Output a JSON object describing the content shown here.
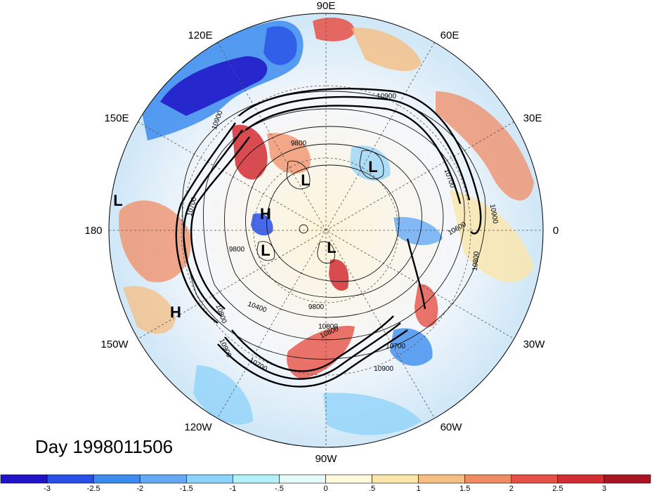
{
  "date_label": "Day 1998011506",
  "longitude_labels": {
    "n": "90E",
    "ne": "60E",
    "ene": "30E",
    "e": "0",
    "ese": "30W",
    "se": "60W",
    "s": "90W",
    "sw": "120W",
    "wsw": "150W",
    "w": "180",
    "wnw": "150E",
    "nw": "120E"
  },
  "pressure_centers": [
    {
      "type": "L",
      "name": "low-center-dateline"
    },
    {
      "type": "L",
      "name": "low-center-siberia"
    },
    {
      "type": "L",
      "name": "low-center-europe"
    },
    {
      "type": "H",
      "name": "high-center-alaska"
    },
    {
      "type": "L",
      "name": "low-center-beaufort"
    },
    {
      "type": "L",
      "name": "low-center-baffin"
    },
    {
      "type": "H",
      "name": "high-center-pacific"
    }
  ],
  "contour_labels": [
    {
      "text": "10900",
      "name": "contour-label-10900-a"
    },
    {
      "text": "10900",
      "name": "contour-label-10900-b"
    },
    {
      "text": "9800",
      "name": "contour-label-9800-a"
    },
    {
      "text": "10700",
      "name": "contour-label-10700-a"
    },
    {
      "text": "10600",
      "name": "contour-label-10600"
    },
    {
      "text": "10900",
      "name": "contour-label-10900-c"
    },
    {
      "text": "10800",
      "name": "contour-label-10800-a"
    },
    {
      "text": "10700",
      "name": "contour-label-10700-b"
    },
    {
      "text": "9800",
      "name": "contour-label-9800-b"
    },
    {
      "text": "10400",
      "name": "contour-label-10400"
    },
    {
      "text": "9800",
      "name": "contour-label-9800-c"
    },
    {
      "text": "10800",
      "name": "contour-label-10800-b"
    },
    {
      "text": "10800",
      "name": "contour-label-10800-c"
    },
    {
      "text": "10900",
      "name": "contour-label-10900-d"
    },
    {
      "text": "10700",
      "name": "contour-label-10700-c"
    },
    {
      "text": "10700",
      "name": "contour-label-10700-d"
    },
    {
      "text": "10900",
      "name": "contour-label-10900-e"
    },
    {
      "text": "10800",
      "name": "contour-label-10800-d"
    }
  ],
  "colorbar": {
    "colors": [
      "#1f14c8",
      "#2850e6",
      "#3c8cf0",
      "#64aaf5",
      "#8cd2fa",
      "#b4f0fa",
      "#e6fafa",
      "#fffadc",
      "#fae6aa",
      "#f5be82",
      "#f08c64",
      "#e65046",
      "#d22d32",
      "#aa1423"
    ],
    "ticks": [
      "-3",
      "-2.5",
      "-2",
      "-1.5",
      "-1",
      "-.5",
      "0",
      ".5",
      "1",
      "1.5",
      "2",
      "2.5",
      "3"
    ]
  }
}
